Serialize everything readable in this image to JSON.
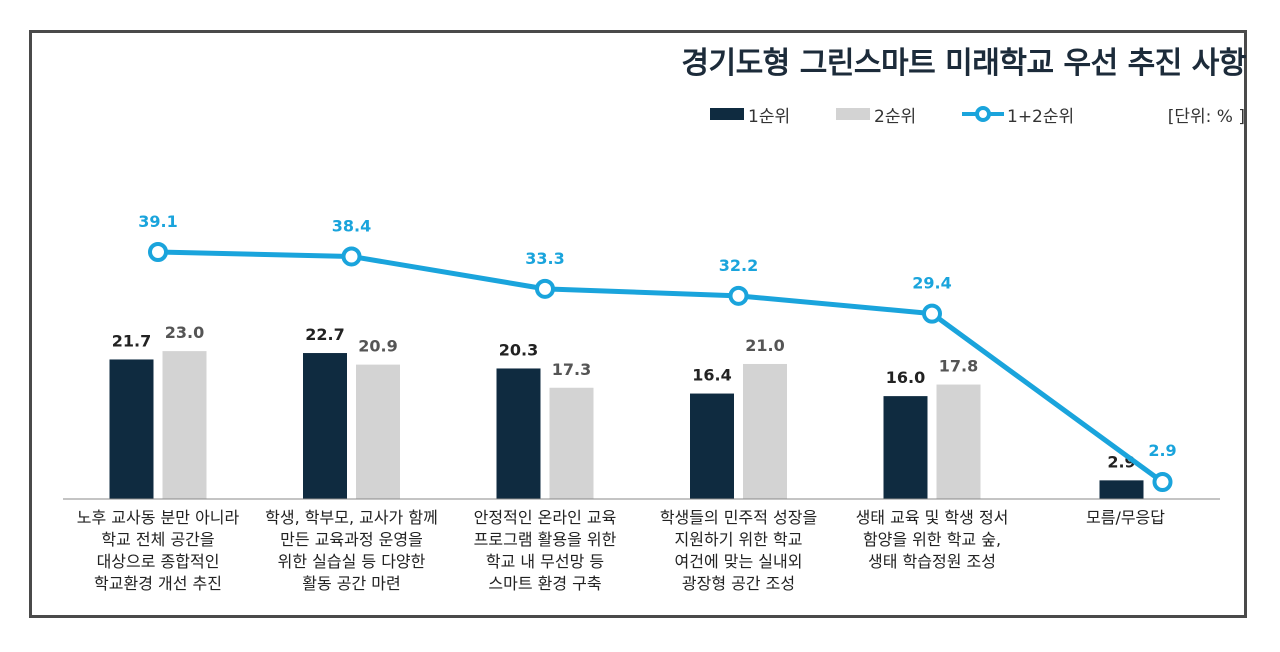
{
  "chart_data": {
    "type": "bar",
    "title": "경기도형 그린스마트 미래학교 우선 추진 사항",
    "unit": "[단위: % ]",
    "categories": [
      "노후 교사동 분만 아니라\n학교 전체 공간을\n대상으로 종합적인\n학교환경 개선 추진",
      "학생, 학부모, 교사가 함께\n만든 교육과정 운영을\n위한 실습실 등 다양한\n활동 공간 마련",
      "안정적인 온라인 교육\n프로그램 활용을 위한\n학교 내 무선망 등\n스마트 환경 구축",
      "학생들의 민주적 성장을\n지원하기 위한 학교\n여건에 맞는 실내외\n광장형 공간 조성",
      "생태 교육 및 학생 정서\n함양을 위한 학교 숲,\n생태 학습정원 조성",
      "모름/무응답"
    ],
    "series": [
      {
        "name": "1순위",
        "type": "bar",
        "color": "#0f2b40",
        "values": [
          21.7,
          22.7,
          20.3,
          16.4,
          16.0,
          2.9
        ]
      },
      {
        "name": "2순위",
        "type": "bar",
        "color": "#d3d3d3",
        "values": [
          23.0,
          20.9,
          17.3,
          21.0,
          17.8,
          null
        ]
      },
      {
        "name": "1+2순위",
        "type": "line",
        "color": "#1aa4dc",
        "values": [
          39.1,
          38.4,
          33.3,
          32.2,
          29.4,
          2.9
        ]
      }
    ],
    "value_labels": {
      "s1": [
        "21.7",
        "22.7",
        "20.3",
        "16.4",
        "16.0",
        "2.9"
      ],
      "s2": [
        "23.0",
        "20.9",
        "17.3",
        "21.0",
        "17.8",
        ""
      ],
      "s3": [
        "39.1",
        "38.4",
        "33.3",
        "32.2",
        "29.4",
        "2.9"
      ]
    },
    "legend_position": "top-right",
    "grid": false
  }
}
